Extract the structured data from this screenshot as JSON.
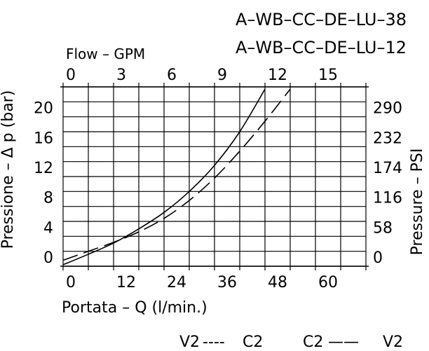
{
  "chart_data": {
    "type": "line",
    "title_lines": [
      "A–WB–CC–DE–LU–38",
      "A–WB–CC–DE–LU–12"
    ],
    "xlabel": "Portata – Q (l/min.)",
    "ylabel": "Pressione – Δ p (bar)",
    "top_axis_label": "Flow – GPM",
    "right_axis_label": "Pressure – PSI",
    "x_ticks": [
      "0",
      "12",
      "24",
      "36",
      "48",
      "60"
    ],
    "y_ticks": [
      "0",
      "4",
      "8",
      "12",
      "16",
      "20"
    ],
    "top_ticks": [
      "0",
      "3",
      "6",
      "9",
      "12",
      "15"
    ],
    "right_ticks": [
      "0",
      "58",
      "116",
      "174",
      "232",
      "290"
    ],
    "xlim": [
      0,
      72
    ],
    "ylim": [
      0,
      24
    ],
    "grid": true,
    "series": [
      {
        "name": "V2 ── C2",
        "style": "solid",
        "x": [
          0,
          6,
          12,
          18,
          24,
          30,
          36,
          42,
          48
        ],
        "y": [
          0.2,
          1.6,
          3.1,
          5.0,
          7.2,
          10.0,
          13.5,
          18.0,
          23.7
        ]
      },
      {
        "name": "V2 - - - C2",
        "style": "dashed",
        "x": [
          0,
          6,
          12,
          18,
          24,
          30,
          36,
          42,
          48,
          54
        ],
        "y": [
          0.8,
          2.0,
          3.2,
          4.6,
          6.4,
          8.8,
          11.8,
          15.4,
          19.4,
          23.7
        ]
      }
    ],
    "legend": [
      {
        "left": "V2",
        "dash": "----",
        "right": "C2"
      },
      {
        "left": "C2",
        "dash": "——",
        "right": "V2"
      }
    ]
  }
}
